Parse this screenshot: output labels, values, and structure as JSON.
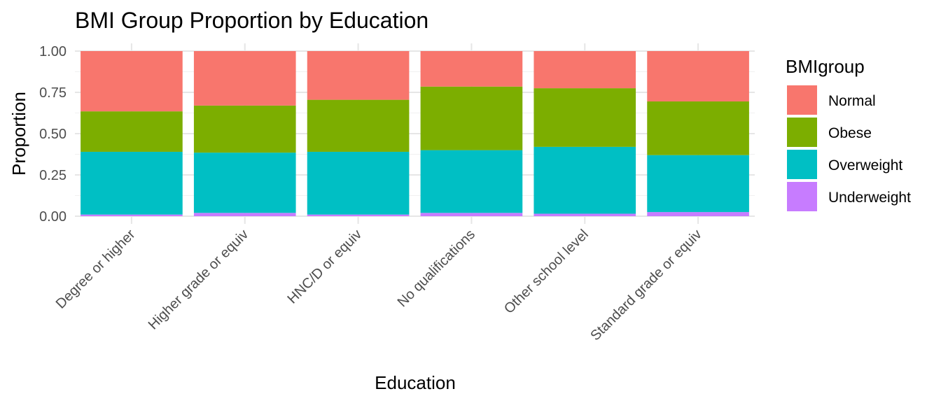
{
  "chart_data": {
    "type": "bar",
    "stacked": true,
    "title": "BMI Group Proportion by Education",
    "xlabel": "Education",
    "ylabel": "Proportion",
    "ylim": [
      0,
      1
    ],
    "yticks": [
      "0.00",
      "0.25",
      "0.50",
      "0.75",
      "1.00"
    ],
    "grid": true,
    "legend_position": "right",
    "legend_title": "BMIgroup",
    "categories": [
      "Degree or higher",
      "Higher grade or equiv",
      "HNC/D or equiv",
      "No qualifications",
      "Other school level",
      "Standard grade or equiv"
    ],
    "series": [
      {
        "name": "Underweight",
        "color": "#C77CFF",
        "values": [
          0.01,
          0.02,
          0.01,
          0.02,
          0.015,
          0.025
        ]
      },
      {
        "name": "Overweight",
        "color": "#00BFC4",
        "values": [
          0.38,
          0.365,
          0.38,
          0.38,
          0.405,
          0.345
        ]
      },
      {
        "name": "Obese",
        "color": "#7CAE00",
        "values": [
          0.245,
          0.285,
          0.315,
          0.385,
          0.355,
          0.325
        ]
      },
      {
        "name": "Normal",
        "color": "#F8766D",
        "values": [
          0.365,
          0.33,
          0.295,
          0.215,
          0.225,
          0.305
        ]
      }
    ],
    "legend_order": [
      "Normal",
      "Obese",
      "Overweight",
      "Underweight"
    ]
  }
}
